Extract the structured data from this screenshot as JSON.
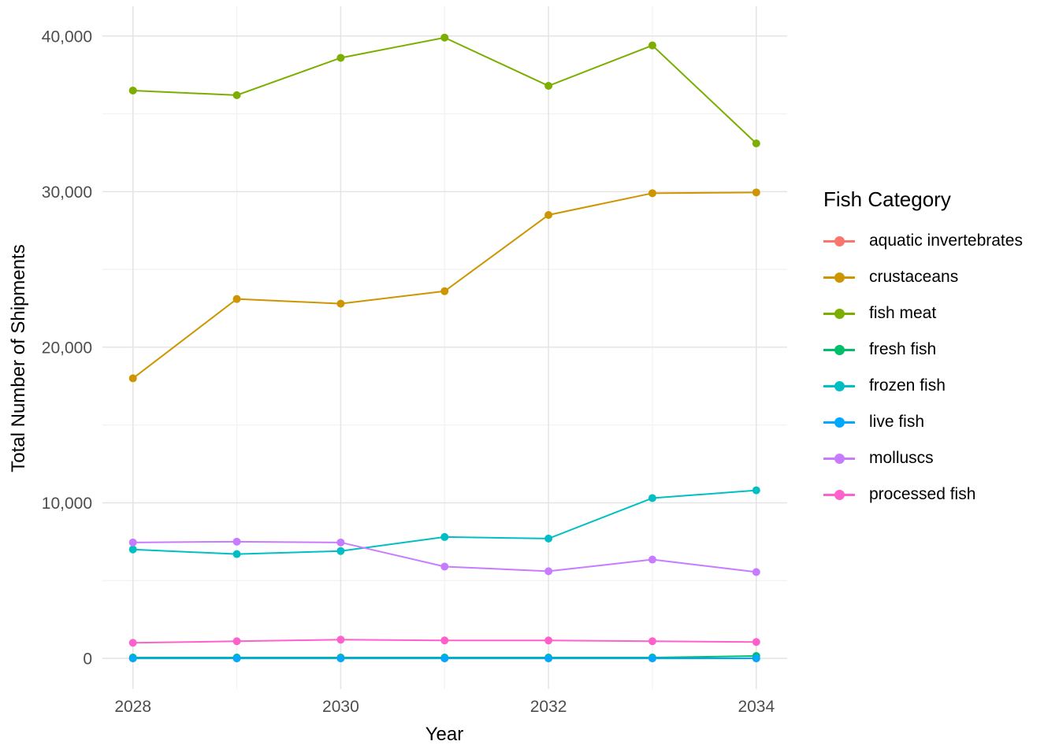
{
  "chart_data": {
    "type": "line",
    "title": "",
    "xlabel": "Year",
    "ylabel": "Total Number of Shipments",
    "legend_title": "Fish Category",
    "legend_position": "right",
    "grid": "major and minor gridlines, light gray on white (theme_minimal)",
    "marker": "filled circle on each data point",
    "x": [
      2028,
      2029,
      2030,
      2031,
      2032,
      2033,
      2034
    ],
    "x_ticks": [
      2028,
      2030,
      2032,
      2034
    ],
    "x_minor_ticks": [
      2029,
      2031,
      2033
    ],
    "y_ticks": [
      0,
      10000,
      20000,
      30000,
      40000
    ],
    "y_tick_labels": [
      "0",
      "10,000",
      "20,000",
      "30,000",
      "40,000"
    ],
    "y_minor_ticks": [
      5000,
      15000,
      25000,
      35000
    ],
    "ylim": [
      0,
      40000
    ],
    "axis_text_color": "#4D4D4D",
    "axis_title_color": "#000000",
    "series": [
      {
        "name": "aquatic invertebrates",
        "color": "#F8766D",
        "values": [
          0,
          0,
          0,
          0,
          0,
          0,
          0
        ]
      },
      {
        "name": "crustaceans",
        "color": "#CD9600",
        "values": [
          18000,
          23100,
          22800,
          23600,
          28500,
          29900,
          29950
        ]
      },
      {
        "name": "fish meat",
        "color": "#7CAE00",
        "values": [
          36500,
          36200,
          38600,
          39900,
          36800,
          39400,
          33100
        ]
      },
      {
        "name": "fresh fish",
        "color": "#00BE67",
        "values": [
          50,
          50,
          50,
          50,
          50,
          50,
          150
        ]
      },
      {
        "name": "frozen fish",
        "color": "#00BFC4",
        "values": [
          7000,
          6700,
          6900,
          7800,
          7700,
          10300,
          10800
        ]
      },
      {
        "name": "live fish",
        "color": "#00A9FF",
        "values": [
          0,
          0,
          0,
          0,
          0,
          0,
          0
        ]
      },
      {
        "name": "molluscs",
        "color": "#C77CFF",
        "values": [
          7450,
          7500,
          7450,
          5900,
          5600,
          6350,
          5550
        ]
      },
      {
        "name": "processed fish",
        "color": "#FF61CC",
        "values": [
          1000,
          1100,
          1200,
          1150,
          1150,
          1100,
          1050
        ]
      }
    ]
  }
}
